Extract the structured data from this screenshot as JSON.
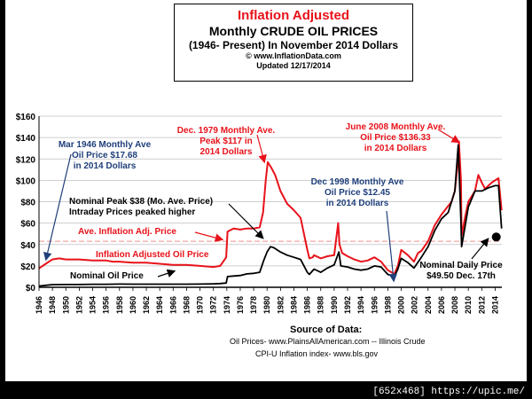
{
  "title": {
    "line1": "Inflation Adjusted",
    "line2": "Monthly CRUDE OIL PRICES",
    "line3": "(1946- Present) In November 2014 Dollars",
    "line4": "© www.InflationData.com",
    "line5": "Updated 12/17/2014"
  },
  "source": {
    "title": "Source of Data:",
    "oil": "Oil Prices- www.PlainsAllAmerican.com -- Illinois Crude",
    "cpi": "CPI-U Inflation index-   www.bls.gov"
  },
  "watermark": "[652x468] https://upic.me/",
  "chart_data": {
    "type": "line",
    "ylim": [
      0,
      160
    ],
    "xlim": [
      1946,
      2015
    ],
    "y_ticks": [
      "$0",
      "$20",
      "$40",
      "$60",
      "$80",
      "$100",
      "$120",
      "$140",
      "$160"
    ],
    "y_tick_values": [
      0,
      20,
      40,
      60,
      80,
      100,
      120,
      140,
      160
    ],
    "x_ticks": [
      "1946",
      "1948",
      "1950",
      "1952",
      "1954",
      "1956",
      "1958",
      "1960",
      "1962",
      "1964",
      "1966",
      "1968",
      "1970",
      "1972",
      "1974",
      "1976",
      "1978",
      "1980",
      "1982",
      "1984",
      "1986",
      "1988",
      "1990",
      "1992",
      "1994",
      "1996",
      "1998",
      "2000",
      "2002",
      "2004",
      "2006",
      "2008",
      "2010",
      "2012",
      "2014"
    ],
    "x_tick_values": [
      1946,
      1948,
      1950,
      1952,
      1954,
      1956,
      1958,
      1960,
      1962,
      1964,
      1966,
      1968,
      1970,
      1972,
      1974,
      1976,
      1978,
      1980,
      1982,
      1984,
      1986,
      1988,
      1990,
      1992,
      1994,
      1996,
      1998,
      2000,
      2002,
      2004,
      2006,
      2008,
      2010,
      2012,
      2014
    ],
    "grid": true,
    "average_line": {
      "name": "Ave. Inflation Adj. Price",
      "value": 43
    },
    "series": [
      {
        "name": "Inflation Adjusted Oil Price",
        "color": "#e8121a",
        "x": [
          1946,
          1947,
          1948,
          1949,
          1950,
          1952,
          1954,
          1956,
          1957,
          1958,
          1960,
          1962,
          1964,
          1966,
          1968,
          1970,
          1972,
          1973,
          1973.9,
          1974.1,
          1975,
          1976,
          1977,
          1978,
          1978.9,
          1979.4,
          1979.8,
          1980.1,
          1980.6,
          1981.2,
          1982,
          1983,
          1984,
          1985,
          1986,
          1986.3,
          1986.8,
          1987,
          1988,
          1989,
          1990,
          1990.6,
          1990.8,
          1991.2,
          1992,
          1993,
          1994,
          1995,
          1996,
          1997,
          1998,
          1998.96,
          1999.5,
          2000,
          2001,
          2001.9,
          2002.5,
          2003,
          2004,
          2005,
          2006,
          2007,
          2007.5,
          2008,
          2008.5,
          2008.6,
          2008.9,
          2009,
          2009.5,
          2010,
          2011,
          2011.5,
          2012,
          2012.5,
          2013,
          2013.5,
          2014,
          2014.5,
          2014.96
        ],
        "values": [
          17.68,
          22,
          26,
          27,
          26,
          26,
          25,
          25,
          24,
          24,
          23,
          23,
          22,
          21,
          21,
          20,
          19,
          20,
          28,
          52,
          55,
          54,
          55,
          55,
          56,
          70,
          100,
          117,
          112,
          105,
          90,
          78,
          72,
          65,
          35,
          27,
          28,
          30,
          27,
          29,
          30,
          60,
          40,
          32,
          29,
          26,
          24,
          25,
          28,
          24,
          16,
          12.45,
          20,
          35,
          30,
          24,
          32,
          34,
          43,
          58,
          68,
          76,
          80,
          90,
          120,
          136.33,
          100,
          48,
          65,
          80,
          90,
          105,
          98,
          92,
          95,
          98,
          100,
          102,
          72
        ]
      },
      {
        "name": "Nominal Oil Price",
        "color": "#000000",
        "x": [
          1946,
          1947,
          1948,
          1950,
          1952,
          1954,
          1956,
          1958,
          1960,
          1962,
          1964,
          1966,
          1968,
          1970,
          1972,
          1973,
          1973.9,
          1974.1,
          1975,
          1976,
          1977,
          1978,
          1978.9,
          1979.5,
          1980,
          1980.5,
          1981,
          1982,
          1983,
          1984,
          1985,
          1986,
          1986.3,
          1987,
          1988,
          1989,
          1990,
          1990.7,
          1991,
          1992,
          1993,
          1994,
          1995,
          1996,
          1997,
          1998,
          1998.96,
          1999.5,
          2000,
          2001,
          2001.9,
          2003,
          2004,
          2005,
          2006,
          2007,
          2008,
          2008.5,
          2008.9,
          2009,
          2010,
          2011,
          2012,
          2013,
          2014,
          2014.5,
          2014.96
        ],
        "values": [
          1.2,
          1.8,
          2.5,
          2.6,
          2.6,
          2.8,
          2.8,
          3,
          2.9,
          2.9,
          2.9,
          2.9,
          2.9,
          3,
          3.2,
          3.5,
          4,
          10,
          10.5,
          11,
          12.5,
          13,
          14,
          25,
          33,
          38,
          37,
          33,
          30,
          28,
          26,
          14,
          12,
          17,
          14,
          18,
          21,
          33,
          20,
          19,
          17,
          16,
          17,
          20,
          19,
          12,
          10,
          17,
          27,
          23,
          18,
          28,
          38,
          53,
          64,
          70,
          90,
          133,
          60,
          38,
          75,
          90,
          90,
          93,
          95,
          95,
          55
        ]
      }
    ],
    "nominal_daily": {
      "label": "Nominal Daily Price $49.50 Dec. 17th",
      "year": 2014.96,
      "value": 49.5
    },
    "annotations": [
      {
        "lines": [
          "Mar 1946 Monthly Ave",
          "Oil  Price $17.68",
          "in 2014 Dollars"
        ],
        "color": "#1f3f7a"
      },
      {
        "lines": [
          "Dec. 1979 Monthly Ave.",
          "Peak $117 in",
          "2014 Dollars"
        ],
        "color": "#e8121a"
      },
      {
        "lines": [
          "June 2008 Monthly Ave.",
          "Oil  Price $136.33",
          "in 2014 Dollars"
        ],
        "color": "#e8121a"
      },
      {
        "lines": [
          "Dec 1998 Monthly Ave",
          "Oil  Price $12.45",
          "in 2014 Dollars"
        ],
        "color": "#1f3f7a"
      },
      {
        "lines": [
          "Nominal Peak $38 (Mo. Ave. Price)",
          "Intraday Prices peaked higher"
        ],
        "color": "#000000"
      },
      {
        "lines": [
          "Ave. Inflation Adj. Price"
        ],
        "color": "#e8121a"
      },
      {
        "lines": [
          "Inflation Adjusted Oil Price"
        ],
        "color": "#e8121a"
      },
      {
        "lines": [
          "Nominal Oil Price"
        ],
        "color": "#000000"
      },
      {
        "lines": [
          "Nominal Daily Price",
          "$49.50 Dec. 17th"
        ],
        "color": "#000000"
      }
    ]
  }
}
